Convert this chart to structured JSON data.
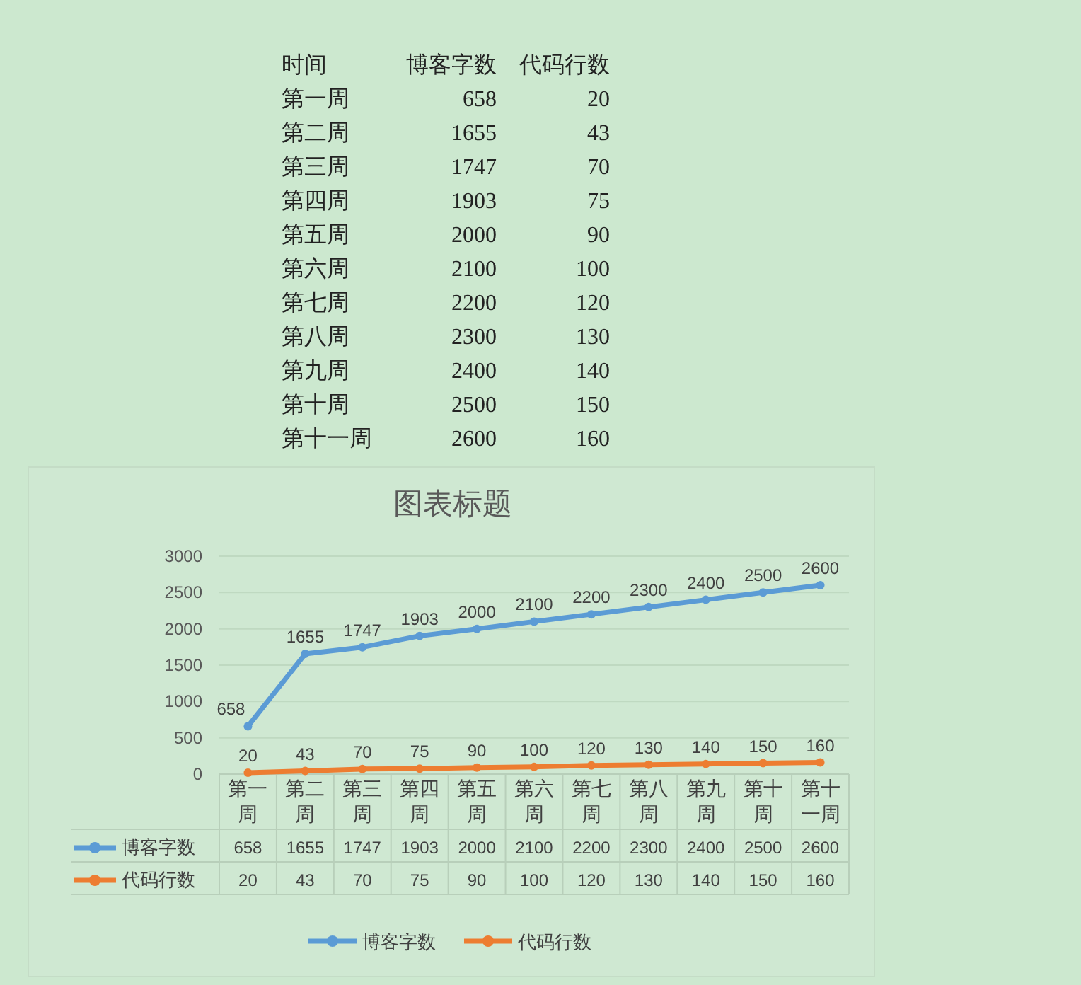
{
  "chart_data": {
    "type": "line",
    "title": "图表标题",
    "annotations": [
      "时间",
      "博客字数",
      "代码行数",
      "第一周",
      "658",
      "20",
      "第二周",
      "1655",
      "43",
      "第三周",
      "1747",
      "70",
      "第四周",
      "1903",
      "75",
      "第五周",
      "2000",
      "90",
      "第六周",
      "2100",
      "100",
      "第七周",
      "2200",
      "120",
      "第八周",
      "2300",
      "130",
      "第九周",
      "2400",
      "140",
      "第十周",
      "2500",
      "150",
      "第十一周",
      "2600",
      "160"
    ],
    "categories": [
      "第一周",
      "第二周",
      "第三周",
      "第四周",
      "第五周",
      "第六周",
      "第七周",
      "第八周",
      "第九周",
      "第十周",
      "第十一周"
    ],
    "series": [
      {
        "name": "博客字数",
        "color": "#5b9bd5",
        "values": [
          658,
          1655,
          1747,
          1903,
          2000,
          2100,
          2200,
          2300,
          2400,
          2500,
          2600
        ],
        "value_labels": [
          "658",
          "1655",
          "1747",
          "1903",
          "2000",
          "2100",
          "2200",
          "2300",
          "2400",
          "2500",
          "2600"
        ]
      },
      {
        "name": "代码行数",
        "color": "#ed7d31",
        "values": [
          20,
          43,
          70,
          75,
          90,
          100,
          120,
          130,
          140,
          150,
          160
        ],
        "value_labels": [
          "20",
          "43",
          "70",
          "75",
          "90",
          "100",
          "120",
          "130",
          "140",
          "150",
          "160"
        ]
      }
    ],
    "ylim": [
      0,
      3000
    ],
    "yticks": [
      0,
      500,
      1000,
      1500,
      2000,
      2500,
      3000
    ],
    "grid": "y",
    "legend": "bottom",
    "marker": "circle",
    "data_labels": true
  }
}
